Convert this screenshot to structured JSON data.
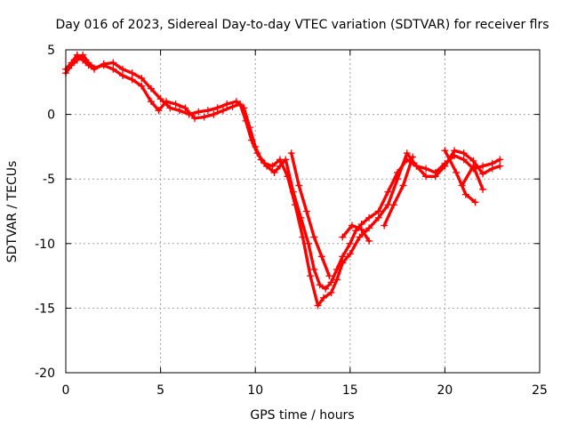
{
  "chart_data": {
    "type": "scatter",
    "title": "Day 016 of 2023, Sidereal Day-to-day VTEC variation (SDTVAR) for receiver flrs",
    "xlabel": "GPS time / hours",
    "ylabel": "SDTVAR / TECUs",
    "xlim": [
      0,
      25
    ],
    "ylim": [
      -20,
      5
    ],
    "xticks": [
      0,
      5,
      10,
      15,
      20,
      25
    ],
    "yticks": [
      5,
      0,
      -5,
      -10,
      -15,
      -20
    ],
    "xtick_labels": [
      "0",
      "5",
      "10",
      "15",
      "20",
      "25"
    ],
    "ytick_labels": [
      "5",
      "0",
      "-5",
      "-10",
      "-15",
      "-20"
    ],
    "grid": true,
    "legend": "none",
    "marker": "plus",
    "color": "#ff0000",
    "series": [
      {
        "x": [
          0,
          0.3,
          0.6,
          0.9,
          1.2,
          1.5,
          2.0,
          2.5,
          3.0,
          3.5,
          4.0,
          4.5,
          5.0,
          5.5,
          6.0,
          6.5,
          7.0,
          7.5,
          8.0,
          8.5,
          9.0,
          9.4,
          9.7,
          10.0,
          10.3,
          10.6,
          11.0,
          11.3,
          11.6,
          12.0,
          12.4,
          12.8,
          13.1,
          13.4,
          13.7,
          14.0,
          14.3,
          14.6,
          15.0,
          15.3,
          15.6,
          16.0,
          16.5,
          17.0,
          17.5,
          18.0,
          18.5,
          19.0,
          19.5,
          20.0,
          20.5,
          21.0,
          21.5,
          22.0,
          22.5,
          22.9
        ],
        "y": [
          3.5,
          4.0,
          4.6,
          4.2,
          3.8,
          3.5,
          3.9,
          4.0,
          3.5,
          3.2,
          2.8,
          2.0,
          1.2,
          0.5,
          0.3,
          0.0,
          0.2,
          0.3,
          0.5,
          0.8,
          1.0,
          0.5,
          -1.0,
          -2.5,
          -3.5,
          -4.0,
          -4.5,
          -4.0,
          -3.5,
          -6.0,
          -8.0,
          -10.0,
          -12.0,
          -13.2,
          -13.5,
          -13.0,
          -12.0,
          -11.0,
          -10.0,
          -9.0,
          -8.5,
          -8.0,
          -7.5,
          -6.0,
          -4.5,
          -3.5,
          -4.0,
          -4.2,
          -4.5,
          -3.8,
          -3.2,
          -3.5,
          -4.2,
          -4.0,
          -3.8,
          -3.5
        ]
      },
      {
        "x": [
          0,
          0.3,
          0.6,
          0.9,
          1.2,
          1.5,
          2.0,
          2.5,
          3.0,
          3.5,
          4.0,
          4.5,
          4.9,
          5.3,
          5.8,
          6.3,
          6.8,
          7.3,
          7.8,
          8.3,
          8.8,
          9.2,
          9.5,
          9.8,
          10.1,
          10.5,
          10.9,
          11.3,
          11.7,
          12.1,
          12.5,
          12.9,
          13.3,
          13.6,
          14.0,
          14.3,
          14.6,
          15.0,
          15.5,
          16.0,
          16.5,
          17.0,
          17.5,
          18.0,
          18.5,
          19.0,
          19.5,
          20.0,
          20.5,
          21.0,
          21.5,
          22.0,
          22.5,
          22.9
        ],
        "y": [
          3.2,
          3.8,
          4.2,
          4.6,
          4.0,
          3.6,
          3.8,
          3.5,
          3.0,
          2.7,
          2.2,
          1.0,
          0.3,
          1.0,
          0.8,
          0.5,
          -0.3,
          -0.2,
          0.0,
          0.3,
          0.6,
          0.8,
          -0.5,
          -2.0,
          -3.0,
          -3.8,
          -4.0,
          -3.5,
          -4.8,
          -7.0,
          -9.5,
          -12.5,
          -14.8,
          -14.2,
          -13.8,
          -12.8,
          -11.5,
          -10.8,
          -9.5,
          -8.8,
          -8.0,
          -7.0,
          -5.0,
          -3.0,
          -4.0,
          -4.8,
          -4.8,
          -4.0,
          -2.8,
          -3.0,
          -3.6,
          -4.6,
          -4.2,
          -4.0
        ]
      },
      {
        "x": [
          11.9,
          12.3,
          12.7,
          13.1,
          13.5,
          13.9
        ],
        "y": [
          -3.0,
          -5.5,
          -7.5,
          -9.5,
          -11.0,
          -12.5
        ]
      },
      {
        "x": [
          14.6,
          15.1,
          15.6,
          16.0
        ],
        "y": [
          -9.5,
          -8.6,
          -8.9,
          -9.8
        ]
      },
      {
        "x": [
          16.8,
          17.3,
          17.8,
          18.3
        ],
        "y": [
          -8.6,
          -7.0,
          -5.5,
          -3.3
        ]
      },
      {
        "x": [
          20.0,
          20.6,
          21.1,
          21.6
        ],
        "y": [
          -2.8,
          -4.5,
          -6.2,
          -6.8
        ]
      },
      {
        "x": [
          20.9,
          21.5,
          22.0
        ],
        "y": [
          -5.5,
          -4.0,
          -5.8
        ]
      }
    ]
  }
}
